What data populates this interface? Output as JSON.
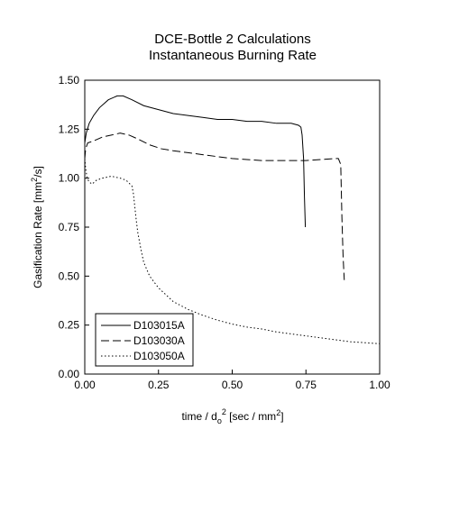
{
  "chart_data": {
    "type": "line",
    "title": "DCE-Bottle 2 Calculations",
    "subtitle": "Instantaneous Burning Rate",
    "xlabel": {
      "main": "time / d",
      "sub": "o",
      "sup": "2",
      "rest": " [sec / mm",
      "sup2": "2",
      "end": "]"
    },
    "ylabel": {
      "main": "Gasification Rate [mm",
      "sup": "2",
      "end": "/s]"
    },
    "xlim": [
      0,
      1.0
    ],
    "ylim": [
      0,
      1.5
    ],
    "x_ticks": [
      "0.00",
      "0.25",
      "0.50",
      "0.75",
      "1.00"
    ],
    "y_ticks": [
      "0.00",
      "0.25",
      "0.50",
      "0.75",
      "1.00",
      "1.25",
      "1.50"
    ],
    "grid": false,
    "legend_position": "bottom-left",
    "series": [
      {
        "name": "D103015A",
        "dash": "solid",
        "x": [
          0.0,
          0.005,
          0.015,
          0.03,
          0.05,
          0.08,
          0.11,
          0.13,
          0.16,
          0.2,
          0.25,
          0.3,
          0.35,
          0.4,
          0.45,
          0.5,
          0.55,
          0.6,
          0.65,
          0.7,
          0.725,
          0.733,
          0.737,
          0.742,
          0.745,
          0.748
        ],
        "y": [
          1.18,
          1.23,
          1.28,
          1.32,
          1.36,
          1.4,
          1.42,
          1.42,
          1.4,
          1.37,
          1.35,
          1.33,
          1.32,
          1.31,
          1.3,
          1.3,
          1.29,
          1.29,
          1.28,
          1.28,
          1.27,
          1.26,
          1.22,
          1.1,
          0.9,
          0.75
        ]
      },
      {
        "name": "D103030A",
        "dash": "long",
        "x": [
          0.0,
          0.003,
          0.01,
          0.03,
          0.06,
          0.09,
          0.12,
          0.15,
          0.18,
          0.22,
          0.26,
          0.3,
          0.35,
          0.4,
          0.45,
          0.5,
          0.55,
          0.6,
          0.65,
          0.7,
          0.75,
          0.8,
          0.85,
          0.86,
          0.868,
          0.872,
          0.876,
          0.88
        ],
        "y": [
          1.1,
          1.15,
          1.18,
          1.19,
          1.21,
          1.22,
          1.23,
          1.22,
          1.2,
          1.17,
          1.15,
          1.14,
          1.13,
          1.12,
          1.11,
          1.1,
          1.095,
          1.09,
          1.09,
          1.09,
          1.09,
          1.095,
          1.1,
          1.1,
          1.07,
          0.8,
          0.6,
          0.48
        ]
      },
      {
        "name": "D103050A",
        "dash": "dot",
        "x": [
          0.0,
          0.003,
          0.008,
          0.015,
          0.025,
          0.04,
          0.06,
          0.09,
          0.12,
          0.14,
          0.16,
          0.165,
          0.17,
          0.175,
          0.18,
          0.185,
          0.19,
          0.2,
          0.22,
          0.25,
          0.3,
          0.35,
          0.4,
          0.45,
          0.5,
          0.55,
          0.6,
          0.65,
          0.7,
          0.75,
          0.8,
          0.85,
          0.9,
          0.95,
          1.0
        ],
        "y": [
          1.1,
          1.05,
          1.0,
          0.98,
          0.97,
          0.99,
          1.0,
          1.01,
          1.0,
          0.99,
          0.96,
          0.92,
          0.85,
          0.78,
          0.72,
          0.68,
          0.64,
          0.57,
          0.5,
          0.44,
          0.37,
          0.33,
          0.3,
          0.275,
          0.255,
          0.24,
          0.23,
          0.215,
          0.205,
          0.195,
          0.185,
          0.175,
          0.165,
          0.16,
          0.155
        ]
      }
    ]
  }
}
